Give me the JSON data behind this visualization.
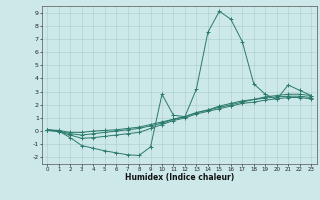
{
  "xlabel": "Humidex (Indice chaleur)",
  "ylabel": "",
  "background_color": "#cce8e8",
  "grid_color": "#aacccc",
  "line_color": "#2a7a6a",
  "xlim": [
    -0.5,
    23.5
  ],
  "ylim": [
    -2.5,
    9.5
  ],
  "xticks": [
    0,
    1,
    2,
    3,
    4,
    5,
    6,
    7,
    8,
    9,
    10,
    11,
    12,
    13,
    14,
    15,
    16,
    17,
    18,
    19,
    20,
    21,
    22,
    23
  ],
  "yticks": [
    -2,
    -1,
    0,
    1,
    2,
    3,
    4,
    5,
    6,
    7,
    8,
    9
  ],
  "lines": [
    {
      "x": [
        0,
        1,
        2,
        3,
        4,
        5,
        6,
        7,
        8,
        9,
        10,
        11,
        12,
        13,
        14,
        15,
        16,
        17,
        18,
        19,
        20,
        21,
        22,
        23
      ],
      "y": [
        0.1,
        0.0,
        -0.5,
        -1.1,
        -1.3,
        -1.5,
        -1.65,
        -1.8,
        -1.85,
        -1.2,
        2.8,
        1.2,
        1.1,
        3.2,
        7.5,
        9.1,
        8.5,
        6.8,
        3.6,
        2.8,
        2.4,
        3.5,
        3.1,
        2.7
      ]
    },
    {
      "x": [
        0,
        1,
        2,
        3,
        4,
        5,
        6,
        7,
        8,
        9,
        10,
        11,
        12,
        13,
        14,
        15,
        16,
        17,
        18,
        19,
        20,
        21,
        22,
        23
      ],
      "y": [
        0.1,
        0.05,
        -0.1,
        -0.1,
        0.0,
        0.05,
        0.1,
        0.2,
        0.3,
        0.5,
        0.7,
        0.9,
        1.1,
        1.4,
        1.6,
        1.9,
        2.1,
        2.3,
        2.4,
        2.6,
        2.7,
        2.8,
        2.8,
        2.7
      ]
    },
    {
      "x": [
        0,
        1,
        2,
        3,
        4,
        5,
        6,
        7,
        8,
        9,
        10,
        11,
        12,
        13,
        14,
        15,
        16,
        17,
        18,
        19,
        20,
        21,
        22,
        23
      ],
      "y": [
        0.1,
        0.0,
        -0.2,
        -0.3,
        -0.2,
        -0.1,
        0.0,
        0.1,
        0.2,
        0.4,
        0.6,
        0.9,
        1.1,
        1.4,
        1.6,
        1.8,
        2.0,
        2.2,
        2.4,
        2.5,
        2.6,
        2.65,
        2.65,
        2.55
      ]
    },
    {
      "x": [
        0,
        1,
        2,
        3,
        4,
        5,
        6,
        7,
        8,
        9,
        10,
        11,
        12,
        13,
        14,
        15,
        16,
        17,
        18,
        19,
        20,
        21,
        22,
        23
      ],
      "y": [
        0.05,
        -0.05,
        -0.3,
        -0.55,
        -0.5,
        -0.4,
        -0.3,
        -0.2,
        -0.1,
        0.2,
        0.5,
        0.8,
        1.0,
        1.3,
        1.5,
        1.7,
        1.9,
        2.1,
        2.2,
        2.35,
        2.45,
        2.55,
        2.55,
        2.45
      ]
    }
  ]
}
